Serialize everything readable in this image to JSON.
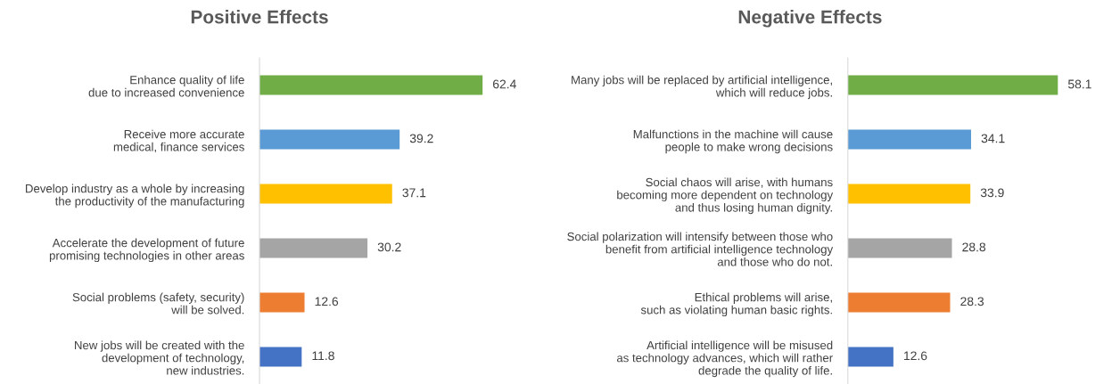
{
  "chart_data": [
    {
      "type": "bar",
      "orientation": "horizontal",
      "title": "Positive Effects",
      "data_labels": true,
      "tick_labels": "y",
      "grid": false,
      "legend": false,
      "categories": [
        "Enhance quality of life\ndue to increased convenience",
        "Receive more accurate\nmedical, finance services",
        "Develop industry as a whole by increasing\nthe productivity of the manufacturing",
        "Accelerate the development of future\npromising technologies in other areas",
        "Social problems (safety, security)\nwill be solved.",
        "New jobs will be created with the\ndevelopment of technology,\nnew industries."
      ],
      "values": [
        62.4,
        39.2,
        37.1,
        30.2,
        12.6,
        11.8
      ],
      "colors": [
        "#70ad47",
        "#5b9bd5",
        "#ffc000",
        "#a5a5a5",
        "#ed7d31",
        "#4472c4"
      ]
    },
    {
      "type": "bar",
      "orientation": "horizontal",
      "title": "Negative Effects",
      "data_labels": true,
      "tick_labels": "y",
      "grid": false,
      "legend": false,
      "categories": [
        "Many jobs will be replaced by artificial intelligence,\nwhich will reduce jobs.",
        "Malfunctions in the machine will cause\npeople to make wrong decisions",
        "Social chaos will arise, with humans\nbecoming more dependent on technology\nand thus losing human dignity.",
        "Social polarization will intensify between those who\nbenefit from artificial intelligence technology\nand those who do not.",
        "Ethical problems will arise,\nsuch as violating human basic rights.",
        "Artificial intelligence will be misused\nas technology advances, which will rather\ndegrade the quality of life."
      ],
      "values": [
        58.1,
        34.1,
        33.9,
        28.8,
        28.3,
        12.6
      ],
      "colors": [
        "#70ad47",
        "#5b9bd5",
        "#ffc000",
        "#a5a5a5",
        "#ed7d31",
        "#4472c4"
      ]
    }
  ]
}
